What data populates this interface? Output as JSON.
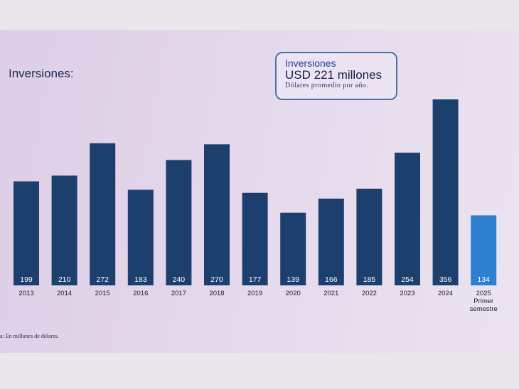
{
  "slide": {
    "title": "Inversiones:",
    "callout": {
      "line1": "Inversiones",
      "line2": "USD 221 millones",
      "line3": "Dólares promedio por año."
    },
    "footnote": "a: En millones de dólares."
  },
  "colors": {
    "bar": "#1d3f6e",
    "bar_highlight": "#2f7fd0",
    "value_label": "#ffffff",
    "axis_label": "#1a1a2a"
  },
  "chart_data": {
    "type": "bar",
    "categories": [
      "2013",
      "2014",
      "2015",
      "2016",
      "2017",
      "2018",
      "2019",
      "2020",
      "2021",
      "2022",
      "2023",
      "2024",
      "2025\nPrimer\nsemestre"
    ],
    "series": [
      {
        "values": [
          199,
          210,
          272,
          183,
          240,
          270,
          177,
          139,
          166,
          185,
          254,
          356,
          134
        ]
      }
    ],
    "highlight_index": 12,
    "ylim": [
      0,
      356
    ],
    "grid": false,
    "legend": "none"
  }
}
